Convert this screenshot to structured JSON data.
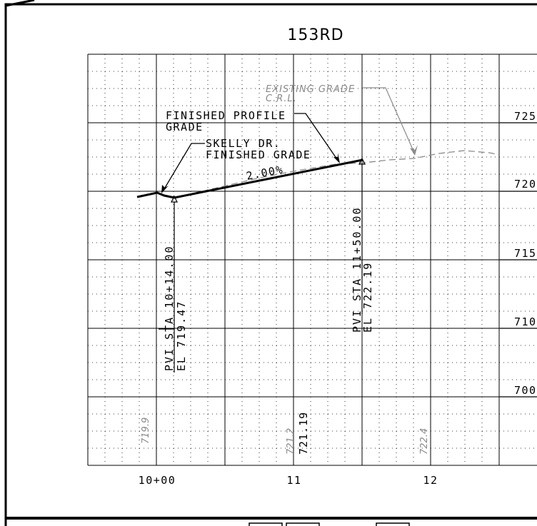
{
  "title": "153RD",
  "labels": {
    "existing_grade_line1": "EXISTING GRADE",
    "existing_grade_line2": "C.R.L.",
    "finished_profile_line1": "FINISHED PROFILE",
    "finished_profile_line2": "GRADE",
    "skelly_line1": "SKELLY DR.",
    "skelly_line2": "FINISHED GRADE",
    "slope": "2.00%",
    "pvi1_line1": "PVI STA 10+14.00",
    "pvi1_line2": "EL 719.47",
    "pvi2_line1": "PVI STA 11+50.00",
    "pvi2_line2": "EL 722.19"
  },
  "axes": {
    "x_ticks": [
      "10+00",
      "11",
      "12"
    ],
    "y_ticks": [
      "725",
      "720",
      "715",
      "710",
      "700"
    ]
  },
  "bottom_elevations": {
    "existing": [
      "719.9",
      "721.2",
      "722.4"
    ],
    "proposed": [
      "721.19"
    ]
  },
  "colors": {
    "grid": "#000000",
    "profile": "#000000",
    "existing": "#8a8a8a"
  }
}
